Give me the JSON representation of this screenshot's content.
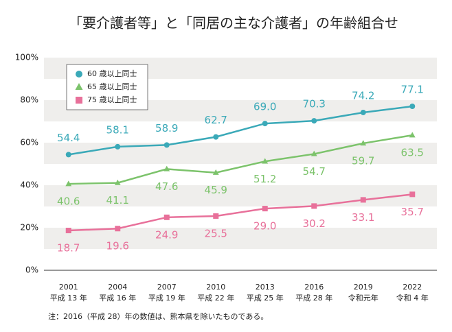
{
  "chart_data": {
    "type": "line",
    "title": "「要介護者等」と「同居の主な介護者」の年齢組合せ",
    "categories": [
      "2001",
      "2004",
      "2007",
      "2010",
      "2013",
      "2016",
      "2019",
      "2022"
    ],
    "category_sublabels": [
      "平成 13 年",
      "平成 16 年",
      "平成 19 年",
      "平成 22 年",
      "平成 25 年",
      "平成 28 年",
      "令和元年",
      "令和 4 年"
    ],
    "series": [
      {
        "name": "60 歳以上同士",
        "color": "#3aa9b8",
        "marker": "circle",
        "label_side": "above",
        "values": [
          54.4,
          58.1,
          58.9,
          62.7,
          69.0,
          70.3,
          74.2,
          77.1
        ],
        "value_labels": [
          "54.4",
          "58.1",
          "58.9",
          "62.7",
          "69.0",
          "70.3",
          "74.2",
          "77.1"
        ]
      },
      {
        "name": "65 歳以上同士",
        "color": "#7cc36b",
        "marker": "triangle",
        "label_side": "below",
        "values": [
          40.6,
          41.1,
          47.6,
          45.9,
          51.2,
          54.7,
          59.7,
          63.5
        ],
        "value_labels": [
          "40.6",
          "41.1",
          "47.6",
          "45.9",
          "51.2",
          "54.7",
          "59.7",
          "63.5"
        ]
      },
      {
        "name": "75 歳以上同士",
        "color": "#e8709a",
        "marker": "square",
        "label_side": "below",
        "values": [
          18.7,
          19.6,
          24.9,
          25.5,
          29.0,
          30.2,
          33.1,
          35.7
        ],
        "value_labels": [
          "18.7",
          "19.6",
          "24.9",
          "25.5",
          "29.0",
          "30.2",
          "33.1",
          "35.7"
        ]
      }
    ],
    "ylim": [
      0,
      100
    ],
    "yticks": [
      {
        "value": 0,
        "label": "0%"
      },
      {
        "value": 20,
        "label": "20%"
      },
      {
        "value": 40,
        "label": "40%"
      },
      {
        "value": 60,
        "label": "60%"
      },
      {
        "value": 80,
        "label": "80%"
      },
      {
        "value": 100,
        "label": "100%"
      }
    ],
    "note": "注：2016（平成 28）年の数値は、熊本県を除いたものである。",
    "legend": "upper left"
  }
}
